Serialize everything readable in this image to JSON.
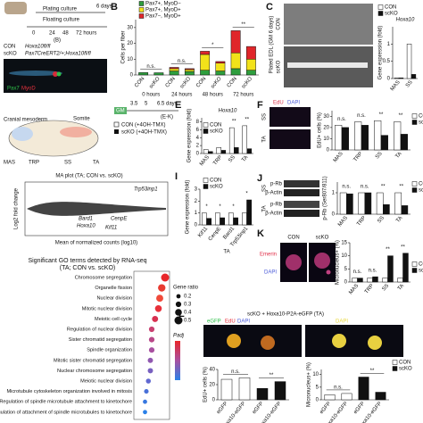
{
  "panel_labels": [
    "B",
    "C",
    "E",
    "F",
    "I",
    "J",
    "K",
    "L"
  ],
  "panel_a": {
    "days": "6 days",
    "plating": "Plating culture",
    "floating": "Floating culture",
    "times": [
      "0",
      "24",
      "48",
      "72 hours"
    ],
    "ref": "(B)",
    "con": "CON",
    "con_geno": "Hoxa10fl/fl",
    "scko": "scKO",
    "scko_geno": "Pax7CreERT2/+;Hoxa10fl/fl",
    "stain": [
      "Pax7",
      "MyoD"
    ]
  },
  "panel_c_images": {
    "con": "CON",
    "scko": "scKO",
    "caption": "Plated EDL (GM 6 days)"
  },
  "panel_d": {
    "cranial": "Cranial mesoderm",
    "somite": "Somite",
    "muscles": [
      "MAS",
      "TRP",
      "SS",
      "TA"
    ],
    "gm": "GM",
    "days": [
      "3.5",
      "5",
      "6.5 days"
    ],
    "ref": "(E-K)",
    "groups": [
      "CON (+4OH-TMX)",
      "scKO (+4OH-TMX)"
    ]
  },
  "panel_f_images": {
    "stain": [
      "EdU",
      "DAPI"
    ],
    "rows": [
      "SS",
      "TA"
    ]
  },
  "ma_plot": {
    "title": "MA plot (TA; CON vs. scKO)",
    "ylabel": "Log2 fold change",
    "xlabel": "Mean of normalized counts (log10)",
    "genes": [
      "Trp53inp1",
      "Bard1",
      "Hoxa10",
      "CenpE",
      "Kif11"
    ]
  },
  "panel_j_blot": {
    "rows": [
      "p-Rb",
      "β-Actin",
      "p-Rb",
      "β-Actin"
    ],
    "groups": [
      "SS",
      "TA"
    ]
  },
  "panel_k_images": {
    "con": "CON",
    "scko": "scKO",
    "stain": [
      "Emerin",
      "DAPI"
    ]
  },
  "panel_l_images": {
    "title": "scKO + Hoxa10-P2A-eGFP (TA)",
    "stain": [
      "eGFP",
      "EdU",
      "DAPI"
    ],
    "dapi": "DAPI"
  },
  "go": {
    "title": "Significant GO terms detected by RNA-seq",
    "subtitle": "(TA; CON vs. scKO)",
    "terms": [
      "Chromosome segregation",
      "Organelle fission",
      "Nuclear division",
      "Mitotic nuclear division",
      "Meiotic cell cycle",
      "Regulation of nuclear division",
      "Sister chromatid segregation",
      "Spindle organization",
      "Mitotic sister chromatid segregation",
      "Nuclear chromosome segregation",
      "Meiotic nuclear division",
      "Microtubule cytoskeleton organization involved in mitosis",
      "Regulation of spindle microtubule attachment to kinetochore",
      "Regulation of attachment of spindle microtubules to kinetochore"
    ],
    "gene_ratio": [
      0.5,
      0.45,
      0.42,
      0.4,
      0.35,
      0.3,
      0.3,
      0.3,
      0.28,
      0.28,
      0.25,
      0.22,
      0.2,
      0.2
    ],
    "colors": [
      "#e8262a",
      "#e83a30",
      "#f04a3a",
      "#e8303a",
      "#d83050",
      "#c84070",
      "#b84888",
      "#a850a0",
      "#9058b0",
      "#7860c0",
      "#6068d0",
      "#4870d8",
      "#3878e0",
      "#2a80e8"
    ],
    "size_title": "Gene ratio",
    "size_legend": [
      0.2,
      0.3,
      0.4,
      0.5
    ],
    "color_title": "Padj"
  },
  "charts": {
    "b": {
      "type": "bar",
      "stacked": true,
      "ylabel": "Cells per fiber",
      "categories": [
        "CON",
        "scKO",
        "CON",
        "scKO",
        "CON",
        "scKO",
        "CON",
        "scKO"
      ],
      "groups": [
        "0 hours",
        "24 hours",
        "48 hours",
        "72 hours"
      ],
      "series": [
        {
          "name": "Pax7+, MyoD−",
          "color": "#2e9e3e",
          "values": [
            1.5,
            1.4,
            2.5,
            2.2,
            3,
            2.5,
            4,
            3
          ]
        },
        {
          "name": "Pax7+, MyoD+",
          "color": "#f2e21a",
          "values": [
            0,
            0,
            1.5,
            1.2,
            10,
            5,
            10,
            7
          ]
        },
        {
          "name": "Pax7−, MyoD+",
          "color": "#e0262a",
          "values": [
            0,
            0,
            0.8,
            0.6,
            2,
            1,
            14,
            8
          ]
        }
      ],
      "ylim": [
        0,
        35
      ],
      "yticks": [
        0,
        10,
        20,
        30
      ],
      "annotations": [
        "n.s.",
        "n.s.",
        "*",
        "**"
      ]
    },
    "c": {
      "type": "bar",
      "title": "Hoxa10",
      "ylabel": "Gene expression (fold)",
      "categories": [
        "MAS",
        "SS"
      ],
      "series": [
        {
          "name": "CON",
          "color": "#ffffff",
          "values": [
            0.02,
            1
          ]
        },
        {
          "name": "scKO",
          "color": "#111111",
          "values": [
            0.02,
            0.12
          ]
        }
      ],
      "ylim": [
        0,
        1.5
      ],
      "yticks": [
        0,
        0.5,
        1
      ]
    },
    "e": {
      "type": "bar",
      "title": "Hoxa10",
      "ylabel": "Gene expression (fold)",
      "categories": [
        "MAS",
        "TRP",
        "SS",
        "TA"
      ],
      "series": [
        {
          "name": "CON",
          "color": "#ffffff",
          "values": [
            1,
            1.5,
            6.5,
            7
          ]
        },
        {
          "name": "scKO",
          "color": "#111111",
          "values": [
            0.5,
            0.8,
            1.5,
            1.2
          ]
        }
      ],
      "ylim": [
        0,
        9
      ],
      "yticks": [
        0,
        2,
        4,
        6,
        8
      ],
      "annotations": [
        null,
        null,
        "**",
        "**"
      ]
    },
    "f": {
      "type": "bar",
      "ylabel": "EdU+ cells (%)",
      "categories": [
        "MAS",
        "TRP",
        "SS",
        "TA"
      ],
      "series": [
        {
          "name": "CON",
          "color": "#ffffff",
          "values": [
            22,
            25,
            26,
            25
          ]
        },
        {
          "name": "scKO",
          "color": "#111111",
          "values": [
            20,
            22,
            13,
            14
          ]
        }
      ],
      "ylim": [
        0,
        35
      ],
      "yticks": [
        0,
        10,
        20,
        30
      ],
      "annotations": [
        "n.s.",
        "n.s.",
        "**",
        "**"
      ]
    },
    "i": {
      "type": "bar",
      "ylabel": "Gene expression (fold)",
      "xlabel": "TA",
      "categories": [
        "Kif11",
        "CenpE",
        "Bard1",
        "Trp53inp1"
      ],
      "series": [
        {
          "name": "CON",
          "color": "#ffffff",
          "values": [
            1,
            1,
            1,
            1
          ]
        },
        {
          "name": "scKO",
          "color": "#111111",
          "values": [
            0.55,
            0.6,
            0.6,
            2.1
          ]
        }
      ],
      "ylim": [
        0,
        3
      ],
      "yticks": [
        0,
        1,
        2,
        3
      ],
      "annotations": [
        "*",
        "*",
        "*",
        "*"
      ]
    },
    "j": {
      "type": "bar",
      "ylabel": "p-Rb (Ser807/811)",
      "categories": [
        "MAS",
        "TRP",
        "SS",
        "TA"
      ],
      "series": [
        {
          "name": "CON",
          "color": "#ffffff",
          "values": [
            1,
            1,
            1,
            1
          ]
        },
        {
          "name": "scKO",
          "color": "#111111",
          "values": [
            0.95,
            1,
            0.45,
            0.4
          ]
        }
      ],
      "ylim": [
        0,
        1.5
      ],
      "yticks": [
        0,
        1
      ],
      "annotations": [
        "n.s.",
        "n.s.",
        "**",
        "**"
      ]
    },
    "k": {
      "type": "bar",
      "ylabel": "Micronucleus+ (%)",
      "categories": [
        "MAS",
        "TRP",
        "SS",
        "TA"
      ],
      "series": [
        {
          "name": "CON",
          "color": "#ffffff",
          "values": [
            1.5,
            1.5,
            1.5,
            1.5
          ]
        },
        {
          "name": "scKO",
          "color": "#111111",
          "values": [
            1.5,
            2,
            10,
            11
          ]
        }
      ],
      "ylim": [
        0,
        15
      ],
      "yticks": [
        0,
        5,
        10,
        15
      ],
      "annotations": [
        "n.s.",
        "n.s.",
        "**",
        "**"
      ]
    },
    "l1": {
      "type": "bar",
      "stacked": true,
      "ylabel": "EdU+ cells (%)",
      "categories": [
        "eGFP",
        "Hoxa10-eGFP",
        "eGFP",
        "Hoxa10-eGFP"
      ],
      "series": [
        {
          "name": "CON",
          "color": "#ffffff",
          "values": [
            27,
            29,
            null,
            null
          ]
        },
        {
          "name": "scKO",
          "color": "#111111",
          "values": [
            null,
            null,
            15,
            24
          ]
        }
      ],
      "ylim": [
        0,
        40
      ],
      "yticks": [
        0,
        20,
        40
      ],
      "annotations": [
        "n.s.",
        "**"
      ]
    },
    "l2": {
      "type": "bar",
      "stacked": true,
      "ylabel": "Micronucleus+ (%)",
      "categories": [
        "eGFP",
        "Hoxa10-eGFP",
        "eGFP",
        "Hoxa10-eGFP"
      ],
      "series": [
        {
          "name": "CON",
          "color": "#ffffff",
          "values": [
            2,
            2.5,
            null,
            null
          ]
        },
        {
          "name": "scKO",
          "color": "#111111",
          "values": [
            null,
            null,
            9,
            3
          ]
        }
      ],
      "ylim": [
        0,
        12
      ],
      "yticks": [
        0,
        5,
        10
      ],
      "annotations": [
        "n.s.",
        "**"
      ]
    }
  }
}
